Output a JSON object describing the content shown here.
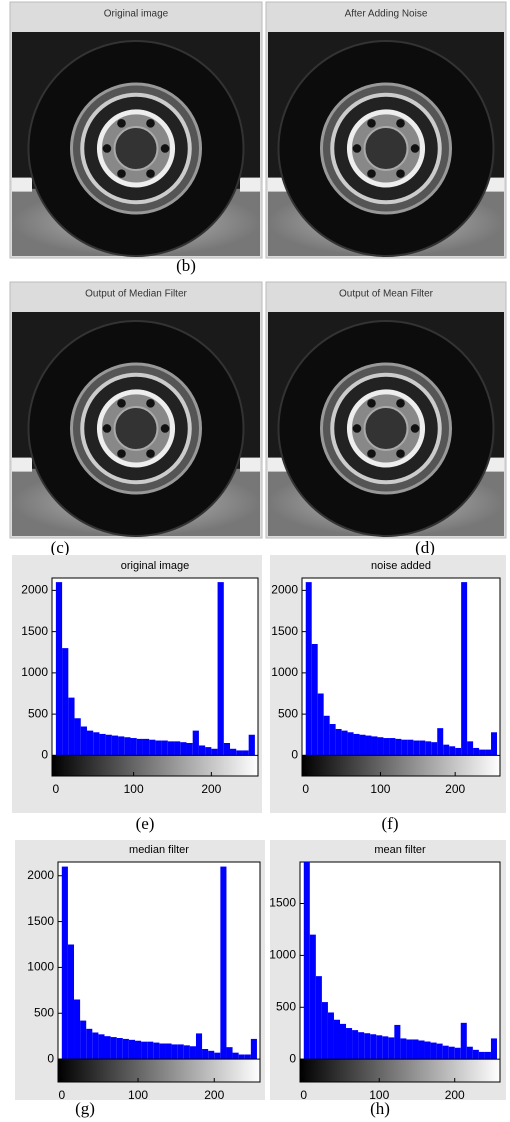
{
  "images": [
    {
      "title": "Original image"
    },
    {
      "title": "After Adding Noise"
    },
    {
      "title": "Output of Median Filter"
    },
    {
      "title": "Output of Mean Filter"
    }
  ],
  "image_captions": [
    "(b)",
    "(c)",
    "(d)"
  ],
  "chart_data": [
    {
      "type": "histogram",
      "title": "original image",
      "caption": "(e)",
      "color": "#0000ff",
      "bins": [
        0,
        8,
        16,
        24,
        32,
        40,
        48,
        56,
        64,
        72,
        80,
        88,
        96,
        104,
        112,
        120,
        128,
        136,
        144,
        152,
        160,
        168,
        176,
        184,
        192,
        200,
        208,
        216,
        224,
        232,
        240,
        248,
        256
      ],
      "values": [
        2100,
        1300,
        700,
        450,
        350,
        300,
        280,
        260,
        250,
        240,
        230,
        220,
        210,
        200,
        200,
        190,
        180,
        180,
        170,
        170,
        160,
        150,
        300,
        120,
        100,
        80,
        2100,
        150,
        80,
        60,
        60,
        250
      ],
      "xlim": [
        -5,
        260
      ],
      "ylim": [
        -250,
        2150
      ],
      "xticks": [
        0,
        100,
        200
      ],
      "yticks": [
        0,
        500,
        1000,
        1500,
        2000
      ]
    },
    {
      "type": "histogram",
      "title": "noise added",
      "caption": "(f)",
      "color": "#0000ff",
      "bins": [
        0,
        8,
        16,
        24,
        32,
        40,
        48,
        56,
        64,
        72,
        80,
        88,
        96,
        104,
        112,
        120,
        128,
        136,
        144,
        152,
        160,
        168,
        176,
        184,
        192,
        200,
        208,
        216,
        224,
        232,
        240,
        248,
        256
      ],
      "values": [
        2100,
        1350,
        750,
        480,
        380,
        320,
        300,
        280,
        260,
        250,
        240,
        230,
        220,
        210,
        210,
        200,
        190,
        190,
        180,
        180,
        170,
        160,
        330,
        130,
        110,
        90,
        2100,
        170,
        90,
        70,
        70,
        280
      ],
      "xlim": [
        -5,
        260
      ],
      "ylim": [
        -250,
        2150
      ],
      "xticks": [
        0,
        100,
        200
      ],
      "yticks": [
        0,
        500,
        1000,
        1500,
        2000
      ]
    },
    {
      "type": "histogram",
      "title": "median filter",
      "caption": "(g)",
      "color": "#0000ff",
      "bins": [
        0,
        8,
        16,
        24,
        32,
        40,
        48,
        56,
        64,
        72,
        80,
        88,
        96,
        104,
        112,
        120,
        128,
        136,
        144,
        152,
        160,
        168,
        176,
        184,
        192,
        200,
        208,
        216,
        224,
        232,
        240,
        248,
        256
      ],
      "values": [
        2100,
        1250,
        650,
        420,
        330,
        290,
        270,
        250,
        240,
        230,
        220,
        210,
        200,
        190,
        190,
        180,
        170,
        170,
        160,
        160,
        150,
        140,
        280,
        110,
        90,
        70,
        2100,
        130,
        70,
        50,
        50,
        220
      ],
      "xlim": [
        -5,
        260
      ],
      "ylim": [
        -250,
        2150
      ],
      "xticks": [
        0,
        100,
        200
      ],
      "yticks": [
        0,
        500,
        1000,
        1500,
        2000
      ]
    },
    {
      "type": "histogram",
      "title": "mean filter",
      "caption": "(h)",
      "color": "#0000ff",
      "bins": [
        0,
        8,
        16,
        24,
        32,
        40,
        48,
        56,
        64,
        72,
        80,
        88,
        96,
        104,
        112,
        120,
        128,
        136,
        144,
        152,
        160,
        168,
        176,
        184,
        192,
        200,
        208,
        216,
        224,
        232,
        240,
        248,
        256
      ],
      "values": [
        1900,
        1200,
        800,
        550,
        450,
        380,
        340,
        300,
        280,
        260,
        250,
        240,
        230,
        220,
        210,
        330,
        200,
        190,
        190,
        180,
        170,
        160,
        150,
        130,
        120,
        110,
        350,
        120,
        90,
        70,
        70,
        200
      ],
      "xlim": [
        -5,
        260
      ],
      "ylim": [
        -220,
        1900
      ],
      "xticks": [
        0,
        100,
        200
      ],
      "yticks": [
        0,
        500,
        1000,
        1500
      ]
    }
  ]
}
